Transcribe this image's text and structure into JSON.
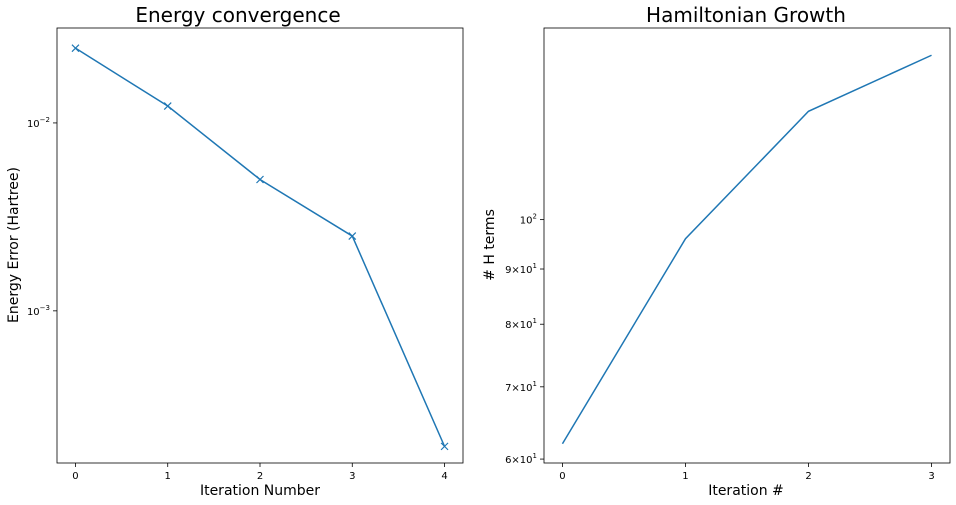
{
  "chart_data": [
    {
      "type": "line",
      "title": "Energy convergence",
      "xlabel": "Iteration Number",
      "ylabel": "Energy Error (Hartree)",
      "yscale": "log",
      "marker": "x",
      "x": [
        0,
        1,
        2,
        3,
        4
      ],
      "series": [
        {
          "values": [
            0.025,
            0.0123,
            0.005,
            0.0025,
            0.00019
          ],
          "color": "#1f77b4"
        }
      ],
      "xlim": [
        -0.2,
        4.2
      ],
      "ylim": [
        0.000155,
        0.032
      ],
      "xticks": [
        "0",
        "1",
        "2",
        "3",
        "4"
      ],
      "yticks": [
        {
          "value": 0.01,
          "base": "10",
          "exp": "−2"
        },
        {
          "value": 0.001,
          "base": "10",
          "exp": "−3"
        }
      ],
      "grid": false
    },
    {
      "type": "line",
      "title": "Hamiltonian Growth",
      "xlabel": "Iteration #",
      "ylabel": "# H terms",
      "yscale": "log",
      "x": [
        0,
        1,
        2,
        3
      ],
      "series": [
        {
          "values": [
            62,
            96,
            126,
            142
          ],
          "color": "#1f77b4"
        }
      ],
      "xlim": [
        -0.15,
        3.15
      ],
      "ylim": [
        59.5,
        150.5
      ],
      "xticks": [
        "0",
        "1",
        "2",
        "3"
      ],
      "yticks": [
        {
          "value": 60,
          "mant": "6",
          "base": "10",
          "exp": "1"
        },
        {
          "value": 70,
          "mant": "7",
          "base": "10",
          "exp": "1"
        },
        {
          "value": 80,
          "mant": "8",
          "base": "10",
          "exp": "1"
        },
        {
          "value": 90,
          "mant": "9",
          "base": "10",
          "exp": "1"
        },
        {
          "value": 100,
          "mant": "",
          "base": "10",
          "exp": "2"
        }
      ],
      "grid": false
    }
  ]
}
